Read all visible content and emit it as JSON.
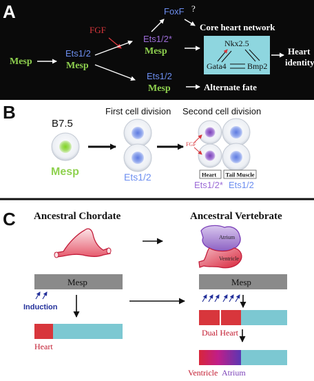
{
  "panel_a": {
    "label": "A",
    "mesp": "Mesp",
    "ets": "Ets1/2",
    "mesp2": "Mesp",
    "fgf": "FGF",
    "foxf": "FoxF",
    "question": "?",
    "core": "Core heart network",
    "ets_star": "Ets1/2*",
    "mesp_top": "Mesp",
    "nkx": "Nkx2.5",
    "gata": "Gata4",
    "bmp": "Bmp2",
    "heart_identity_1": "Heart",
    "heart_identity_2": "identity",
    "ets_low": "Ets1/2",
    "mesp_low": "Mesp",
    "alternate": "Alternate fate"
  },
  "panel_b": {
    "label": "B",
    "b75": "B7.5",
    "first_div": "First cell division",
    "second_div": "Second cell division",
    "fgf": "FGF",
    "mesp": "Mesp",
    "ets": "Ets1/2",
    "heart_box": "Heart",
    "tail_box": "Tail Muscle",
    "ets_star": "Ets1/2*",
    "ets_plain": "Ets1/2"
  },
  "panel_c": {
    "label": "C",
    "ancestral_chordate": "Ancestral Chordate",
    "ancestral_vertebrate": "Ancestral Vertebrate",
    "atrium": "Atrium",
    "ventricle": "Ventricle",
    "mesp_left": "Mesp",
    "mesp_right": "Mesp",
    "induction": "Induction",
    "heart": "Heart",
    "dual_heart": "Dual Heart",
    "ventricle_label": "Ventricle",
    "atrium_label": "Atrium"
  },
  "colors": {
    "panel_a_bg": "#0a0a0a",
    "green": "#8fd14f",
    "blue": "#6c8ef0",
    "purple": "#9b6bd6",
    "red": "#d8363c",
    "cyan_box": "#8ed6df",
    "gray_bar": "#8a8a8a",
    "teal_bar": "#7cc8d2",
    "dark_blue": "#23309a"
  }
}
